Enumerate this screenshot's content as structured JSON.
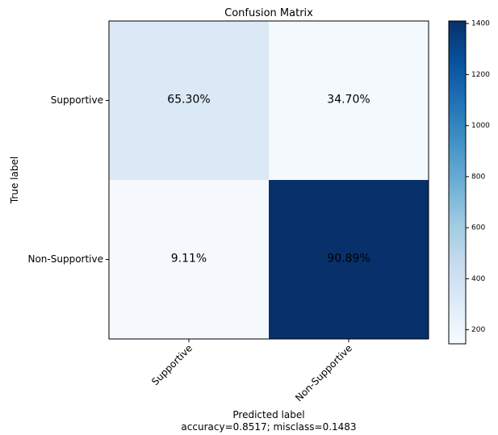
{
  "chart_data": {
    "type": "heatmap",
    "title": "Confusion Matrix",
    "xlabel": "Predicted label",
    "ylabel": "True label",
    "footer": "accuracy=0.8517; misclass=0.1483",
    "x_categories": [
      "Supportive",
      "Non-Supportive"
    ],
    "y_categories": [
      "Supportive",
      "Non-Supportive"
    ],
    "cell_labels": [
      [
        "65.30%",
        "34.70%"
      ],
      [
        "9.11%",
        "90.89%"
      ]
    ],
    "cell_colors": [
      [
        "#dbe9f6",
        "#f4f9fe"
      ],
      [
        "#f5f9fe",
        "#08306b"
      ]
    ],
    "cell_text_colors": [
      [
        "#000000",
        "#000000"
      ],
      [
        "#000000",
        "#000000"
      ]
    ],
    "colorbar": {
      "min": 145,
      "max": 1410,
      "ticks": [
        200,
        400,
        600,
        800,
        1000,
        1200,
        1400
      ],
      "colormap": "Blues"
    }
  }
}
